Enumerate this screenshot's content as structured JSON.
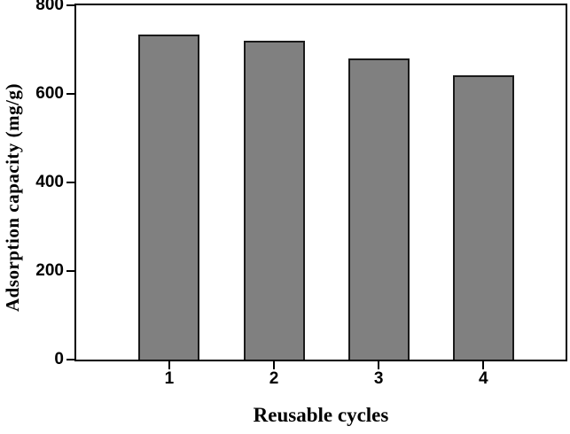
{
  "figure": {
    "background": "#ffffff"
  },
  "chart_data": {
    "type": "bar",
    "title": "",
    "categories": [
      "1",
      "2",
      "3",
      "4"
    ],
    "values": [
      735,
      720,
      681,
      643
    ],
    "xlabel": "Reusable cycles",
    "ylabel": "Adsorption capacity (mg/g)",
    "ylim": [
      0,
      800
    ],
    "yticks": [
      0,
      200,
      400,
      600,
      800
    ],
    "grid": false,
    "legend": "none",
    "bar_fill_color": "#808080",
    "bar_edge_color": "#1a1a1a",
    "axis_color": "#000000",
    "tick_label_color": "#000000"
  }
}
